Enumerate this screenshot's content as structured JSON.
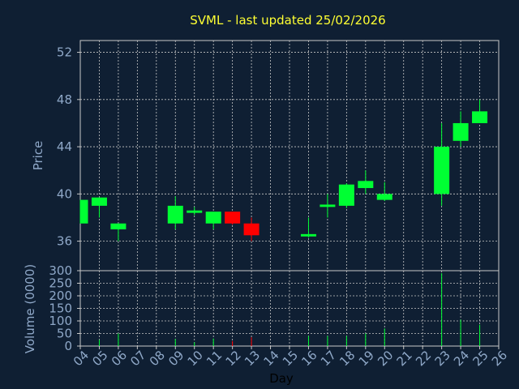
{
  "chart_data": {
    "type": "candlestick",
    "title": "SVML - last updated 25/02/2026",
    "xlabel": "Day",
    "ylabel_price": "Price",
    "ylabel_volume": "Volume (0000)",
    "x_ticks": [
      "04",
      "05",
      "06",
      "07",
      "08",
      "09",
      "10",
      "11",
      "12",
      "13",
      "14",
      "15",
      "16",
      "17",
      "18",
      "19",
      "20",
      "21",
      "22",
      "23",
      "24",
      "25",
      "26"
    ],
    "price_ticks": [
      36,
      40,
      44,
      48,
      52
    ],
    "price_ylim": [
      33.5,
      53
    ],
    "volume_ticks": [
      0,
      50,
      100,
      150,
      200,
      250,
      300
    ],
    "volume_ylim": [
      0,
      300
    ],
    "grid": true,
    "colors": {
      "background": "#0f1f33",
      "up": "#00ff33",
      "down": "#ff0000",
      "grid": "#c8c8c8",
      "axis": "#c8c8c8",
      "tick_text": "#8fa8c8",
      "title": "#ffff33"
    },
    "candles": [
      {
        "day": "04",
        "open": 37.5,
        "high": 39.5,
        "low": 37.5,
        "close": 39.5,
        "volume": 0
      },
      {
        "day": "05",
        "open": 39.0,
        "high": 39.7,
        "low": 38.0,
        "close": 39.7,
        "volume": 25
      },
      {
        "day": "06",
        "open": 37.0,
        "high": 37.5,
        "low": 36.0,
        "close": 37.5,
        "volume": 50
      },
      {
        "day": "09",
        "open": 37.5,
        "high": 39.8,
        "low": 37.0,
        "close": 39.0,
        "volume": 28
      },
      {
        "day": "10",
        "open": 38.4,
        "high": 38.9,
        "low": 38.2,
        "close": 38.6,
        "volume": 15
      },
      {
        "day": "11",
        "open": 37.5,
        "high": 38.5,
        "low": 37.0,
        "close": 38.5,
        "volume": 30
      },
      {
        "day": "12",
        "open": 38.5,
        "high": 38.5,
        "low": 37.4,
        "close": 37.5,
        "volume": 20
      },
      {
        "day": "13",
        "open": 37.5,
        "high": 38.0,
        "low": 36.0,
        "close": 36.5,
        "volume": 35
      },
      {
        "day": "16",
        "open": 36.4,
        "high": 38.0,
        "low": 36.3,
        "close": 36.6,
        "volume": 40
      },
      {
        "day": "17",
        "open": 38.9,
        "high": 40.0,
        "low": 38.0,
        "close": 39.1,
        "volume": 40
      },
      {
        "day": "18",
        "open": 39.0,
        "high": 40.9,
        "low": 38.8,
        "close": 40.8,
        "volume": 40
      },
      {
        "day": "19",
        "open": 40.5,
        "high": 42.0,
        "low": 40.0,
        "close": 41.1,
        "volume": 50
      },
      {
        "day": "20",
        "open": 39.5,
        "high": 41.0,
        "low": 39.4,
        "close": 40.0,
        "volume": 70
      },
      {
        "day": "23",
        "open": 40.0,
        "high": 46.0,
        "low": 39.0,
        "close": 44.0,
        "volume": 290
      },
      {
        "day": "24",
        "open": 44.5,
        "high": 47.0,
        "low": 44.0,
        "close": 46.0,
        "volume": 105
      },
      {
        "day": "25",
        "open": 46.0,
        "high": 48.0,
        "low": 46.0,
        "close": 47.0,
        "volume": 85
      }
    ]
  }
}
